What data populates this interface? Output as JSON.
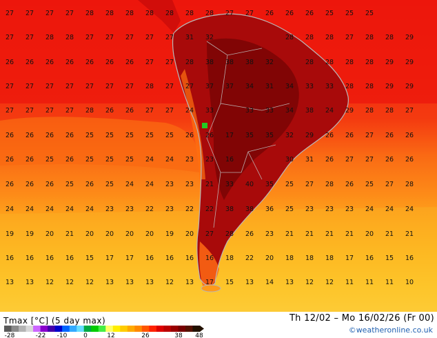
{
  "legend": {
    "title": "Tmax [°C] (5 day max)",
    "ticks": [
      "-28",
      "-22",
      "-10",
      "0",
      "12",
      "26",
      "38",
      "48"
    ],
    "colors": [
      "#5a5a5a",
      "#8a8a8a",
      "#b4b4b4",
      "#d8d8d8",
      "#cc66ff",
      "#8800cc",
      "#4400aa",
      "#0000cc",
      "#0066ff",
      "#33aaff",
      "#66ddff",
      "#00aa44",
      "#00cc00",
      "#44ee44",
      "#ffff66",
      "#ffee00",
      "#ffcc00",
      "#ffaa00",
      "#ff8800",
      "#ff5500",
      "#ff2200",
      "#dd0000",
      "#bb0000",
      "#990000",
      "#770000",
      "#551100",
      "#221100"
    ]
  },
  "date_range": "Th 12/02 – Mo 16/02/26 (Fr 00)",
  "credit": "©weatheronline.co.uk",
  "temperature_labels": [
    [
      "27",
      "27",
      "27",
      "27",
      "28",
      "28",
      "28",
      "28",
      "28",
      "28",
      "28",
      "27",
      "27",
      "26",
      "26",
      "26",
      "25",
      "25",
      "25",
      "",
      ""
    ],
    [
      "27",
      "27",
      "28",
      "28",
      "27",
      "27",
      "27",
      "27",
      "27",
      "31",
      "32",
      "",
      "",
      "",
      "28",
      "28",
      "28",
      "27",
      "28",
      "28",
      "29"
    ],
    [
      "26",
      "26",
      "26",
      "26",
      "26",
      "26",
      "26",
      "27",
      "27",
      "28",
      "38",
      "38",
      "38",
      "32",
      "",
      "28",
      "28",
      "28",
      "28",
      "29",
      "29"
    ],
    [
      "27",
      "27",
      "27",
      "27",
      "27",
      "27",
      "27",
      "28",
      "27",
      "27",
      "37",
      "37",
      "34",
      "31",
      "34",
      "33",
      "33",
      "28",
      "28",
      "29",
      "29"
    ],
    [
      "27",
      "27",
      "27",
      "27",
      "28",
      "26",
      "26",
      "27",
      "27",
      "24",
      "33",
      "",
      "33",
      "33",
      "34",
      "38",
      "24",
      "29",
      "28",
      "28",
      "27"
    ],
    [
      "26",
      "26",
      "26",
      "26",
      "25",
      "25",
      "25",
      "25",
      "25",
      "26",
      "26",
      "17",
      "35",
      "35",
      "32",
      "29",
      "26",
      "26",
      "27",
      "26",
      "26"
    ],
    [
      "26",
      "26",
      "25",
      "26",
      "25",
      "25",
      "25",
      "24",
      "24",
      "23",
      "23",
      "16",
      "",
      "",
      "30",
      "31",
      "26",
      "27",
      "27",
      "26",
      "26"
    ],
    [
      "26",
      "26",
      "26",
      "25",
      "26",
      "25",
      "24",
      "24",
      "23",
      "23",
      "21",
      "33",
      "40",
      "35",
      "25",
      "27",
      "28",
      "26",
      "25",
      "27",
      "28"
    ],
    [
      "24",
      "24",
      "24",
      "24",
      "24",
      "23",
      "23",
      "22",
      "23",
      "22",
      "22",
      "38",
      "38",
      "36",
      "25",
      "23",
      "23",
      "23",
      "24",
      "24",
      "24"
    ],
    [
      "19",
      "19",
      "20",
      "21",
      "20",
      "20",
      "20",
      "20",
      "19",
      "20",
      "27",
      "28",
      "26",
      "23",
      "21",
      "21",
      "21",
      "21",
      "20",
      "21",
      "21"
    ],
    [
      "16",
      "16",
      "16",
      "16",
      "15",
      "17",
      "17",
      "16",
      "16",
      "16",
      "16",
      "18",
      "22",
      "20",
      "18",
      "18",
      "18",
      "17",
      "16",
      "15",
      "16"
    ],
    [
      "13",
      "13",
      "12",
      "12",
      "12",
      "13",
      "13",
      "13",
      "12",
      "13",
      "17",
      "15",
      "13",
      "14",
      "13",
      "12",
      "12",
      "11",
      "11",
      "11",
      "10"
    ]
  ]
}
